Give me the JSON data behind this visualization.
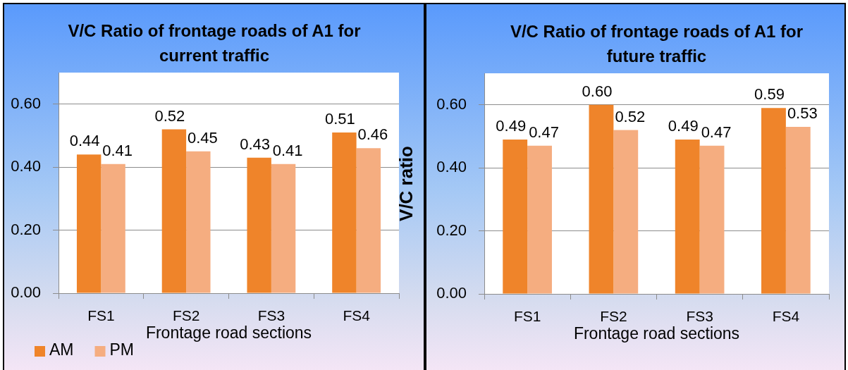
{
  "chart_data": [
    {
      "type": "bar",
      "title": "V/C Ratio of frontage roads of A1 for current traffic",
      "xlabel": "Frontage road sections",
      "categories": [
        "FS1",
        "FS2",
        "FS3",
        "FS4"
      ],
      "series": [
        {
          "name": "AM",
          "color": "#ef842a",
          "values": [
            0.44,
            0.52,
            0.43,
            0.51
          ]
        },
        {
          "name": "PM",
          "color": "#f5ad80",
          "values": [
            0.41,
            0.45,
            0.41,
            0.46
          ]
        }
      ],
      "ylim": [
        0,
        0.7
      ],
      "yticks": [
        {
          "value": 0,
          "label": "0.00"
        },
        {
          "value": 0.2,
          "label": "0.20"
        },
        {
          "value": 0.4,
          "label": "0.40"
        },
        {
          "value": 0.6,
          "label": "0.60"
        }
      ],
      "grid": "y",
      "legend": "bottom left",
      "data_labels": true
    },
    {
      "type": "bar",
      "title": "V/C Ratio of frontage roads of A1 for future traffic",
      "xlabel": "Frontage road sections",
      "ylabel": "V/C ratio",
      "categories": [
        "FS1",
        "FS2",
        "FS3",
        "FS4"
      ],
      "series": [
        {
          "color": "#ef842a",
          "values": [
            0.49,
            0.6,
            0.49,
            0.59
          ],
          "value_labels": [
            "0.49",
            "0.60",
            "0.49",
            "0.59"
          ]
        },
        {
          "color": "#f5ad80",
          "values": [
            0.47,
            0.52,
            0.47,
            0.53
          ],
          "value_labels": [
            "0.47",
            "0.52",
            "0.47",
            "0.53"
          ]
        }
      ],
      "ylim": [
        0,
        0.7
      ],
      "yticks": [
        {
          "value": 0,
          "label": "0.00"
        },
        {
          "value": 0.2,
          "label": "0.20"
        },
        {
          "value": 0.4,
          "label": "0.40"
        },
        {
          "value": 0.6,
          "label": "0.60"
        }
      ],
      "grid": "y"
    }
  ]
}
